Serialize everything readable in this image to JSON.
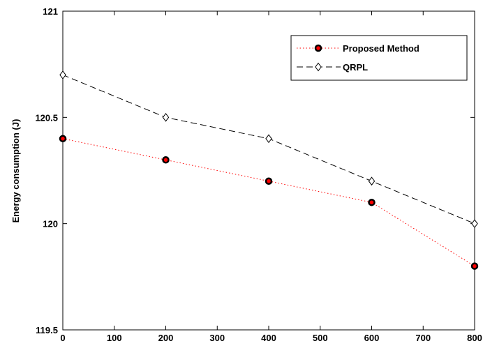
{
  "chart_data": {
    "type": "line",
    "title": "",
    "xlabel": "",
    "ylabel": "Energy consumption (J)",
    "xlim": [
      0,
      800
    ],
    "ylim": [
      119.5,
      121
    ],
    "x_ticks": [
      0,
      100,
      200,
      300,
      400,
      500,
      600,
      700,
      800
    ],
    "y_ticks": [
      119.5,
      120,
      120.5,
      121
    ],
    "x_tick_labels": [
      "0",
      "100",
      "200",
      "300",
      "400",
      "500",
      "600",
      "700",
      "800"
    ],
    "y_tick_labels": [
      "119.5",
      "120",
      "120.5",
      "121"
    ],
    "grid": false,
    "legend_position": "top-right",
    "x": [
      0,
      200,
      400,
      600,
      800
    ],
    "series": [
      {
        "name": "Proposed Method",
        "values": [
          120.4,
          120.3,
          120.2,
          120.1,
          119.8
        ],
        "color": "#ff0000",
        "marker_color": "#000000",
        "marker_fill": "#ff0000",
        "line_style": "dotted",
        "marker": "circle"
      },
      {
        "name": "QRPL",
        "values": [
          120.7,
          120.5,
          120.4,
          120.2,
          120.0
        ],
        "color": "#000000",
        "marker_color": "#000000",
        "marker_fill": "#ffffff",
        "line_style": "dashed",
        "marker": "diamond"
      }
    ]
  }
}
